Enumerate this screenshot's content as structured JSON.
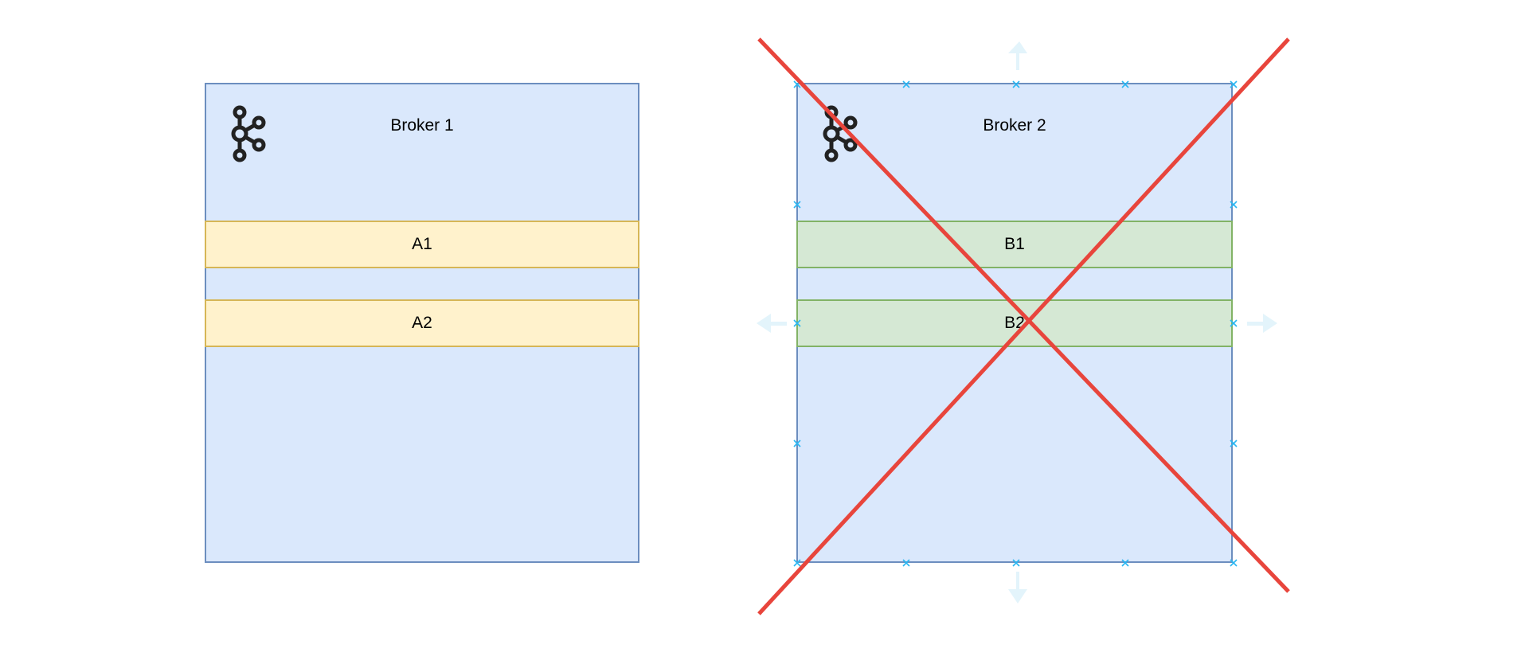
{
  "brokers": [
    {
      "title": "Broker 1",
      "partitions": [
        {
          "label": "A1",
          "color": "yellow"
        },
        {
          "label": "A2",
          "color": "yellow"
        }
      ],
      "icon": "kafka-icon",
      "crossed_out": false
    },
    {
      "title": "Broker 2",
      "partitions": [
        {
          "label": "B1",
          "color": "green"
        },
        {
          "label": "B2",
          "color": "green"
        }
      ],
      "icon": "kafka-icon",
      "crossed_out": true,
      "selected": true
    }
  ],
  "colors": {
    "broker_fill": "#dae8fc",
    "broker_stroke": "#6c8ebf",
    "yellow_fill": "#fff2cc",
    "yellow_stroke": "#d6b656",
    "green_fill": "#d5e8d4",
    "green_stroke": "#82b366",
    "cross": "#e8453c",
    "selection": "#29b6f2"
  }
}
